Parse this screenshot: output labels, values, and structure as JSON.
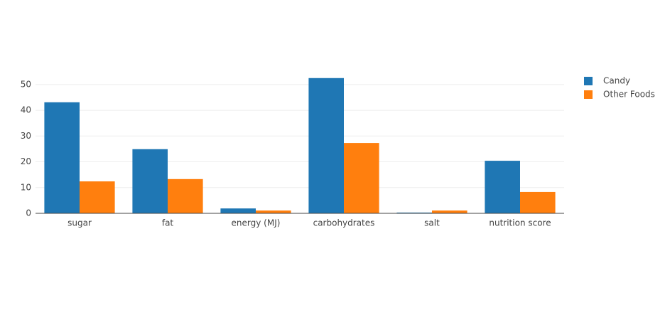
{
  "chart_data": {
    "type": "bar",
    "categories": [
      "sugar",
      "fat",
      "energy (MJ)",
      "carbohydrates",
      "salt",
      "nutrition score"
    ],
    "series": [
      {
        "name": "Candy",
        "color": "#1f77b4",
        "values": [
          43.1,
          24.9,
          1.9,
          52.5,
          0.3,
          20.4
        ]
      },
      {
        "name": "Other Foods",
        "color": "#ff7f0e",
        "values": [
          12.4,
          13.3,
          1.1,
          27.3,
          1.1,
          8.3
        ]
      }
    ],
    "ylim": [
      0,
      55.2
    ],
    "yticks": [
      0,
      10,
      20,
      30,
      40,
      50
    ],
    "grid": true,
    "legend": "right"
  }
}
